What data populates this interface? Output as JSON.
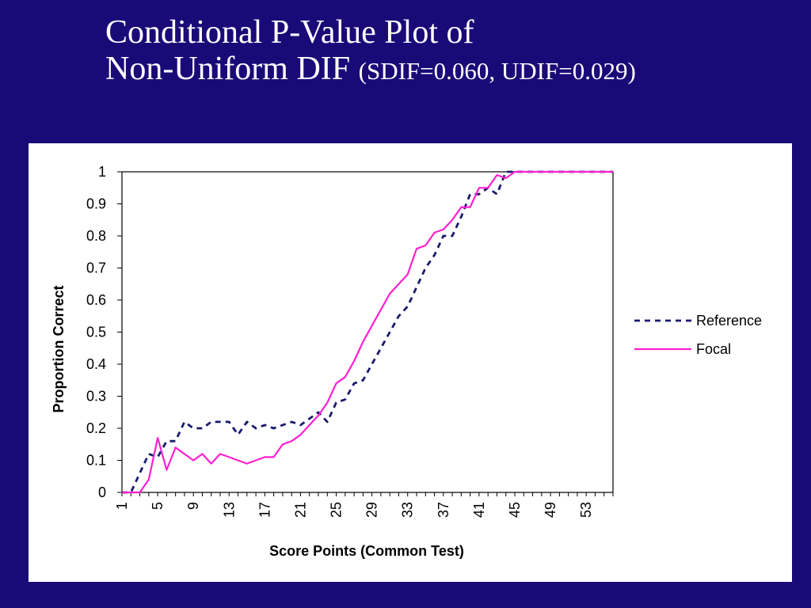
{
  "slide": {
    "title_line1": "Conditional P-Value Plot of",
    "title_line2": "Non-Uniform DIF",
    "title_suffix": "(SDIF=0.060, UDIF=0.029)"
  },
  "chart_data": {
    "type": "line",
    "xlabel": "Score Points (Common Test)",
    "ylabel": "Proportion Correct",
    "ylim": [
      0,
      1
    ],
    "xlim": [
      1,
      56
    ],
    "yticks": [
      0,
      0.1,
      0.2,
      0.3,
      0.4,
      0.5,
      0.6,
      0.7,
      0.8,
      0.9,
      1
    ],
    "ytick_labels": [
      "0",
      "0.1",
      "0.2",
      "0.3",
      "0.4",
      "0.5",
      "0.6",
      "0.7",
      "0.8",
      "0.9",
      "1"
    ],
    "xticks": [
      1,
      5,
      9,
      13,
      17,
      21,
      25,
      29,
      33,
      37,
      41,
      45,
      49,
      53
    ],
    "xtick_labels": [
      "1",
      "5",
      "9",
      "13",
      "17",
      "21",
      "25",
      "29",
      "33",
      "37",
      "41",
      "45",
      "49",
      "53"
    ],
    "grid": false,
    "legend_position": "right",
    "x": [
      1,
      2,
      3,
      4,
      5,
      6,
      7,
      8,
      9,
      10,
      11,
      12,
      13,
      14,
      15,
      16,
      17,
      18,
      19,
      20,
      21,
      22,
      23,
      24,
      25,
      26,
      27,
      28,
      29,
      30,
      31,
      32,
      33,
      34,
      35,
      36,
      37,
      38,
      39,
      40,
      41,
      42,
      43,
      44,
      45,
      46,
      47,
      48,
      49,
      50,
      51,
      52,
      53,
      54,
      55,
      56
    ],
    "series": [
      {
        "name": "Reference",
        "style": "dashed",
        "color": "#1a1a6e",
        "values": [
          0,
          0,
          0.06,
          0.12,
          0.11,
          0.16,
          0.16,
          0.22,
          0.2,
          0.2,
          0.22,
          0.22,
          0.22,
          0.18,
          0.22,
          0.2,
          0.21,
          0.2,
          0.21,
          0.22,
          0.21,
          0.23,
          0.25,
          0.22,
          0.28,
          0.29,
          0.34,
          0.35,
          0.4,
          0.45,
          0.5,
          0.55,
          0.58,
          0.64,
          0.7,
          0.74,
          0.8,
          0.8,
          0.86,
          0.93,
          0.93,
          0.95,
          0.93,
          1,
          1,
          1,
          1,
          1,
          1,
          1,
          1,
          1,
          1,
          1,
          1,
          1
        ]
      },
      {
        "name": "Focal",
        "style": "solid",
        "color": "#ff1fd2",
        "values": [
          0,
          0,
          0,
          0.04,
          0.17,
          0.07,
          0.14,
          0.12,
          0.1,
          0.12,
          0.09,
          0.12,
          0.11,
          0.1,
          0.09,
          0.1,
          0.11,
          0.11,
          0.15,
          0.16,
          0.18,
          0.21,
          0.24,
          0.28,
          0.34,
          0.36,
          0.41,
          0.47,
          0.52,
          0.57,
          0.62,
          0.65,
          0.68,
          0.76,
          0.77,
          0.81,
          0.82,
          0.85,
          0.89,
          0.89,
          0.95,
          0.95,
          0.99,
          0.98,
          1,
          1,
          1,
          1,
          1,
          1,
          1,
          1,
          1,
          1,
          1,
          1
        ]
      }
    ]
  }
}
